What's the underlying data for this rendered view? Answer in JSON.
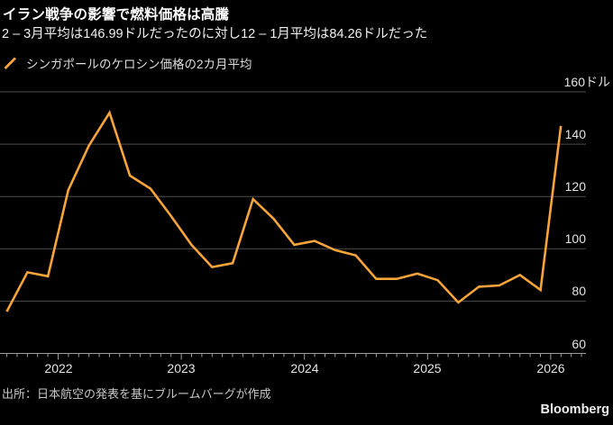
{
  "header": {
    "title": "イラン戦争の影響で燃料価格は高騰",
    "subtitle": "2 – 3月平均は146.99ドルだったのに対し12 – 1月平均は84.26ドルだった"
  },
  "legend": {
    "label": "シンガポールのケロシン価格の2カ月平均",
    "swatch": "diagonal-slash",
    "color": "#F7A43B"
  },
  "footer": {
    "source": "出所：日本航空の発表を基にブルームバーグが作成",
    "brand": "Bloomberg"
  },
  "colors": {
    "background": "#000000",
    "accent": "#F7A43B",
    "gridline": "#4D4D4D",
    "axis_line": "#9E9E9E",
    "title_text": "#FFFFFF",
    "subtitle_text": "#F0F0F0",
    "legend_text": "#DCDCDC",
    "tick_label": "#E3E3E3",
    "source_text": "#C6C6C6",
    "brand_text": "#EDEDED"
  },
  "chart_data": {
    "type": "line",
    "title": "イラン戦争の影響で燃料価格は高騰",
    "unit_label": "ドル",
    "ylim": [
      60,
      160
    ],
    "y_ticks": [
      160,
      140,
      120,
      100,
      80,
      60
    ],
    "y_tick_labels": [
      "160ドル",
      "140",
      "120",
      "100",
      "80",
      "60"
    ],
    "x_tick_years": [
      2022,
      2023,
      2024,
      2025,
      2026
    ],
    "x_tick_labels": [
      "2022",
      "2023",
      "2024",
      "2025",
      "2026"
    ],
    "x_minor_tick_interval": "1 month",
    "xlim_years": [
      2021.52,
      2026.28
    ],
    "grid": "horizontal",
    "legend_position": "top-left",
    "series": [
      {
        "name": "シンガポールのケロシン価格の2カ月平均",
        "color": "#F7A43B",
        "points": [
          {
            "period": "2021年8-9月",
            "x_year": 2021.583,
            "value": 76
          },
          {
            "period": "2021年10-11月",
            "x_year": 2021.75,
            "value": 91
          },
          {
            "period": "2021年12-2022年1月",
            "x_year": 2021.917,
            "value": 89.5
          },
          {
            "period": "2022年2-3月",
            "x_year": 2022.083,
            "value": 122.5
          },
          {
            "period": "2022年4-5月",
            "x_year": 2022.25,
            "value": 139.5
          },
          {
            "period": "2022年6-7月",
            "x_year": 2022.417,
            "value": 152
          },
          {
            "period": "2022年8-9月",
            "x_year": 2022.583,
            "value": 128
          },
          {
            "period": "2022年10-11月",
            "x_year": 2022.75,
            "value": 123
          },
          {
            "period": "2022年12-2023年1月",
            "x_year": 2022.917,
            "value": 112.5
          },
          {
            "period": "2023年2-3月",
            "x_year": 2023.083,
            "value": 101.5
          },
          {
            "period": "2023年4-5月",
            "x_year": 2023.25,
            "value": 93
          },
          {
            "period": "2023年6-7月",
            "x_year": 2023.417,
            "value": 94.5
          },
          {
            "period": "2023年8-9月",
            "x_year": 2023.583,
            "value": 119
          },
          {
            "period": "2023年10-11月",
            "x_year": 2023.75,
            "value": 111.5
          },
          {
            "period": "2023年12-2024年1月",
            "x_year": 2023.917,
            "value": 101.5
          },
          {
            "period": "2024年2-3月",
            "x_year": 2024.083,
            "value": 103
          },
          {
            "period": "2024年4-5月",
            "x_year": 2024.25,
            "value": 99.5
          },
          {
            "period": "2024年6-7月",
            "x_year": 2024.417,
            "value": 97.5
          },
          {
            "period": "2024年8-9月",
            "x_year": 2024.583,
            "value": 88.5
          },
          {
            "period": "2024年10-11月",
            "x_year": 2024.75,
            "value": 88.5
          },
          {
            "period": "2024年12-2025年1月",
            "x_year": 2024.917,
            "value": 90.5
          },
          {
            "period": "2025年2-3月",
            "x_year": 2025.083,
            "value": 88
          },
          {
            "period": "2025年4-5月",
            "x_year": 2025.25,
            "value": 79.5
          },
          {
            "period": "2025年6-7月",
            "x_year": 2025.417,
            "value": 85.5
          },
          {
            "period": "2025年8-9月",
            "x_year": 2025.583,
            "value": 86
          },
          {
            "period": "2025年10-11月",
            "x_year": 2025.75,
            "value": 90
          },
          {
            "period": "2025年12-2026年1月",
            "x_year": 2025.917,
            "value": 84.26
          },
          {
            "period": "2026年2-3月",
            "x_year": 2026.083,
            "value": 146.99
          }
        ]
      }
    ],
    "annotations": {
      "latest": {
        "period": "2026年2-3月",
        "value": 146.99
      },
      "previous": {
        "period": "2025年12-2026年1月",
        "value": 84.26
      }
    }
  }
}
